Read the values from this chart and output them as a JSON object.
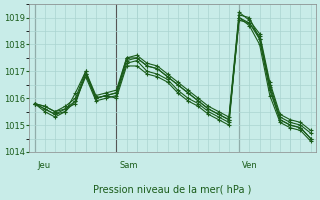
{
  "title": "Pression niveau de la mer( hPa )",
  "ylabel": "",
  "ylim": [
    1014,
    1019.5
  ],
  "yticks": [
    1014,
    1015,
    1016,
    1017,
    1018,
    1019
  ],
  "bg_color": "#c8ece8",
  "grid_color": "#aad4d0",
  "line_color": "#1a5c1a",
  "day_labels": [
    "Jeu",
    "Sam",
    "Ven"
  ],
  "day_positions": [
    0,
    8,
    20
  ],
  "series": [
    [
      1015.8,
      1015.7,
      1015.5,
      1015.6,
      1015.8,
      1016.9,
      1016.0,
      1016.1,
      1016.2,
      1017.4,
      1017.5,
      1017.2,
      1017.1,
      1016.8,
      1016.5,
      1016.2,
      1015.9,
      1015.6,
      1015.4,
      1015.2,
      1019.0,
      1018.8,
      1018.3,
      1016.5,
      1015.3,
      1015.1,
      1015.0,
      1014.7
    ],
    [
      1015.8,
      1015.6,
      1015.4,
      1015.5,
      1015.9,
      1016.8,
      1015.9,
      1016.0,
      1016.1,
      1017.3,
      1017.4,
      1017.0,
      1016.9,
      1016.7,
      1016.3,
      1016.0,
      1015.8,
      1015.5,
      1015.3,
      1015.1,
      1019.1,
      1019.0,
      1018.2,
      1016.3,
      1015.2,
      1015.0,
      1014.9,
      1014.5
    ],
    [
      1015.8,
      1015.7,
      1015.5,
      1015.7,
      1016.0,
      1017.0,
      1016.1,
      1016.2,
      1016.3,
      1017.5,
      1017.6,
      1017.3,
      1017.2,
      1016.9,
      1016.6,
      1016.3,
      1016.0,
      1015.7,
      1015.5,
      1015.3,
      1019.2,
      1018.9,
      1018.4,
      1016.6,
      1015.4,
      1015.2,
      1015.1,
      1014.8
    ],
    [
      1015.8,
      1015.5,
      1015.3,
      1015.5,
      1016.2,
      1017.0,
      1016.0,
      1016.1,
      1016.0,
      1017.2,
      1017.2,
      1016.9,
      1016.8,
      1016.6,
      1016.2,
      1015.9,
      1015.7,
      1015.4,
      1015.2,
      1015.0,
      1019.0,
      1018.7,
      1018.0,
      1016.1,
      1015.1,
      1014.9,
      1014.8,
      1014.4
    ],
    [
      1015.8,
      1015.6,
      1015.4,
      1015.6,
      1015.9,
      1016.9,
      1016.0,
      1016.1,
      1016.2,
      1017.5,
      1017.5,
      1017.2,
      1017.1,
      1016.8,
      1016.5,
      1016.2,
      1015.9,
      1015.6,
      1015.4,
      1015.2,
      1018.9,
      1018.8,
      1018.2,
      1016.4,
      1015.2,
      1015.0,
      1014.9,
      1014.5
    ]
  ]
}
